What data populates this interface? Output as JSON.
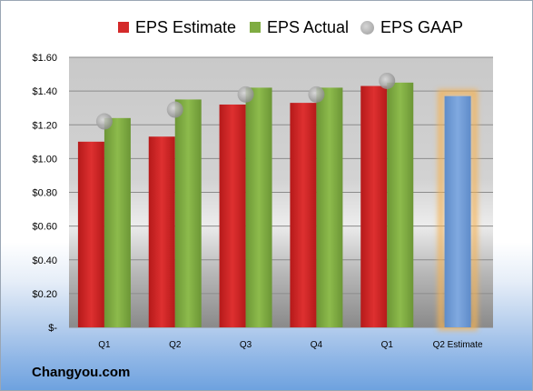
{
  "chart_data": {
    "type": "bar",
    "categories": [
      "Q1",
      "Q2",
      "Q3",
      "Q4",
      "Q1",
      "Q2 Estimate"
    ],
    "series": [
      {
        "name": "EPS Estimate",
        "values": [
          1.1,
          1.13,
          1.32,
          1.33,
          1.43,
          null
        ],
        "color": "#d42a2a"
      },
      {
        "name": "EPS Actual",
        "values": [
          1.24,
          1.35,
          1.42,
          1.42,
          1.45,
          null
        ],
        "color": "#7fac42"
      },
      {
        "name": "EPS GAAP",
        "values": [
          1.22,
          1.29,
          1.38,
          1.38,
          1.46,
          null
        ],
        "color": "#a8a8a8",
        "marker": "circle"
      }
    ],
    "highlight": {
      "category": "Q2 Estimate",
      "value": 1.37,
      "color": "#6f9bd6",
      "glow": "#f5b253"
    },
    "y_ticks": [
      "$-",
      "$0.20",
      "$0.40",
      "$0.60",
      "$0.80",
      "$1.00",
      "$1.20",
      "$1.40",
      "$1.60"
    ],
    "ylim": [
      0,
      1.6
    ],
    "y_step": 0.2,
    "grid": true,
    "legend_position": "top"
  },
  "legend": {
    "estimate_label": "EPS Estimate",
    "actual_label": "EPS Actual",
    "gaap_label": "EPS GAAP"
  },
  "branding": {
    "text": "Changyou.com"
  }
}
